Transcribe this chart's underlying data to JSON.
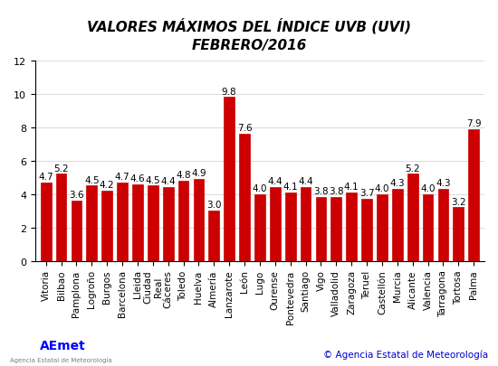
{
  "title_line1": "VALORES MÁXIMOS DEL ÍNDICE UVB (UVI)",
  "title_line2": "FEBRERO/2016",
  "categories": [
    "Vitoria",
    "Bilbao",
    "Pamplona",
    "Logroño",
    "Burgos",
    "Barcelona",
    "Lleida",
    "Ciudad\nReal",
    "Cáceres",
    "Toledo",
    "Huelva",
    "Almería",
    "Lanzarote",
    "León",
    "Lugo",
    "Ourense",
    "Pontevedra",
    "Santiago",
    "Vigo",
    "Valladolid",
    "Zaragoza",
    "Teruel",
    "Castellón",
    "Murcia",
    "Alicante",
    "Valencia",
    "Tarragona",
    "Tortosa",
    "Palma"
  ],
  "values": [
    4.7,
    5.2,
    3.6,
    4.5,
    4.2,
    4.7,
    4.6,
    4.5,
    4.4,
    4.8,
    4.9,
    3.0,
    9.8,
    7.6,
    4.0,
    4.4,
    4.1,
    4.4,
    3.8,
    3.8,
    4.1,
    3.7,
    4.0,
    4.3,
    5.2,
    4.0,
    4.3,
    3.2,
    7.9
  ],
  "bar_color": "#cc0000",
  "bar_edge_color": "#cc0000",
  "ylim": [
    0.0,
    12.0
  ],
  "yticks": [
    0.0,
    2.0,
    4.0,
    6.0,
    8.0,
    10.0,
    12.0
  ],
  "background_color": "#ffffff",
  "grid_color": "#cccccc",
  "value_fontsize": 7.5,
  "label_fontsize": 7.5,
  "title_fontsize": 11,
  "copyright_text": "© Agencia Estatal de Meteorología",
  "copyright_color": "#0000cc"
}
